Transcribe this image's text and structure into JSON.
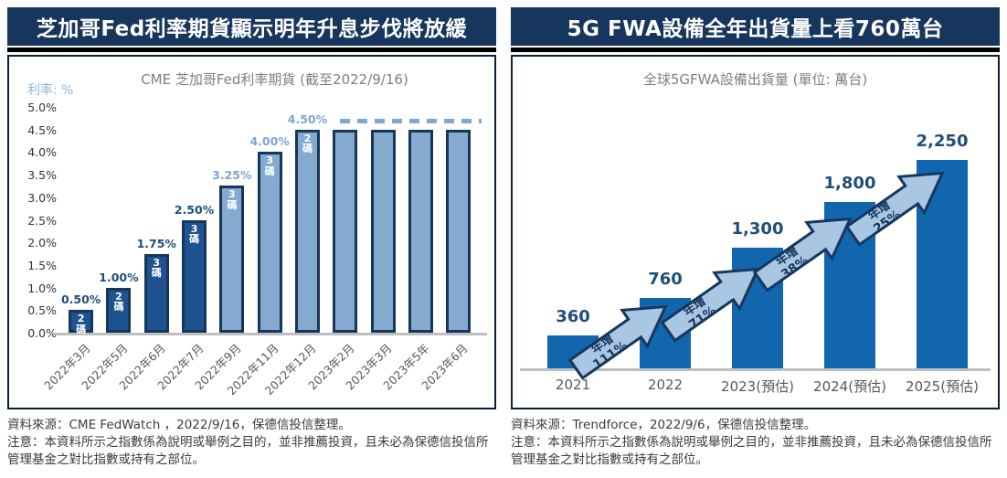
{
  "left_panel": {
    "header": "芝加哥Fed利率期貨顯示明年升息步伐將放緩",
    "source": "資料來源：CME FedWatch ，2022/9/16，保德信投信整理。",
    "note": "注意：本資料所示之指數係為說明或舉例之目的，並非推薦投資，且未必為保德信投信所管理基金之對比指數或持有之部位。"
  },
  "right_panel": {
    "header": "5G FWA設備全年出貨量上看760萬台",
    "source": "資料來源：Trendforce，2022/9/6，保德信投信整理。",
    "note": "注意：本資料所示之指數係為說明或舉例之目的，並非推薦投資，且未必為保德信投信所管理基金之對比指數或持有之部位。"
  },
  "colors": {
    "header_bg": "#17365D",
    "header_text": "#FFFFFF",
    "panel_border": "#0B1F3A",
    "dark_bar": "#1F538F",
    "light_bar": "#84ABCF",
    "bar_border": "#16365C",
    "dark_value_label": "#1F4E79",
    "light_value_label": "#7EA4CE",
    "right_bar": "#1266AD",
    "axis_gray": "#BFBFBF",
    "tick_text": "#333333",
    "category_text": "#595959",
    "chart_title_text": "#7F7F7F",
    "arrow_fill": "#A9C6E3",
    "arrow_border": "#17375E",
    "dashed_line": "#7FA7D1"
  },
  "chart_data": [
    {
      "type": "bar",
      "title": "CME 芝加哥Fed利率期貨 (截至2022/9/16)",
      "ylabel": "利率: %",
      "xlabel": "",
      "ylim": [
        0,
        5
      ],
      "yticks_top_to_bottom": [
        "5.0%",
        "4.5%",
        "4.0%",
        "3.5%",
        "3.0%",
        "2.5%",
        "2.0%",
        "1.5%",
        "1.0%",
        "0.5%",
        "0.0%"
      ],
      "categories": [
        "2022年3月",
        "2022年5月",
        "2022年6月",
        "2022年7月",
        "2022年9月",
        "2022年11月",
        "2022年12月",
        "2023年2月",
        "2023年3月",
        "2023年5年",
        "2023年6月"
      ],
      "values": [
        0.5,
        1.0,
        1.75,
        2.5,
        3.25,
        4.0,
        4.5,
        4.5,
        4.5,
        4.5,
        4.5
      ],
      "value_labels": [
        "0.50%",
        "1.00%",
        "1.75%",
        "2.50%",
        "3.25%",
        "4.00%",
        "4.50%",
        "",
        "",
        "",
        ""
      ],
      "bar_inner_labels": [
        "2碼",
        "2碼",
        "3碼",
        "3碼",
        "3碼",
        "3碼",
        "2碼",
        "",
        "",
        "",
        ""
      ],
      "bar_palette": [
        "dark",
        "dark",
        "dark",
        "dark",
        "light",
        "light",
        "light",
        "light",
        "light",
        "light",
        "light"
      ],
      "reference_line": {
        "level": 4.5,
        "style": "dashed"
      },
      "legend": "none",
      "grid": "off"
    },
    {
      "type": "bar",
      "title": "全球5GFWA設備出貨量 (單位: 萬台)",
      "xlabel": "",
      "ylim": [
        0,
        2400
      ],
      "categories": [
        "2021",
        "2022",
        "2023(預估)",
        "2024(預估)",
        "2025(預估)"
      ],
      "values": [
        360,
        760,
        1300,
        1800,
        2250
      ],
      "value_labels": [
        "360",
        "760",
        "1,300",
        "1,800",
        "2,250"
      ],
      "growth_arrows": [
        {
          "line1": "年增",
          "line2": "111%"
        },
        {
          "line1": "年增",
          "line2": "71%"
        },
        {
          "line1": "年增",
          "line2": "38%"
        },
        {
          "line1": "年增",
          "line2": "25%"
        }
      ],
      "legend": "none",
      "grid": "off"
    }
  ]
}
